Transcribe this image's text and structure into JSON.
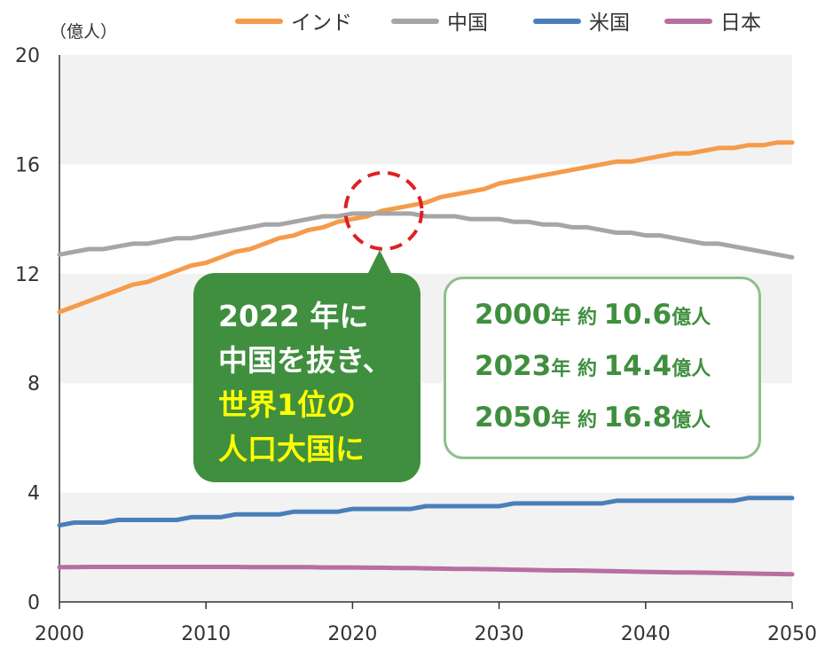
{
  "chart_data": {
    "type": "line",
    "unit_label": "（億人）",
    "x": [
      2000,
      2001,
      2002,
      2003,
      2004,
      2005,
      2006,
      2007,
      2008,
      2009,
      2010,
      2011,
      2012,
      2013,
      2014,
      2015,
      2016,
      2017,
      2018,
      2019,
      2020,
      2021,
      2022,
      2023,
      2024,
      2025,
      2026,
      2027,
      2028,
      2029,
      2030,
      2031,
      2032,
      2033,
      2034,
      2035,
      2036,
      2037,
      2038,
      2039,
      2040,
      2041,
      2042,
      2043,
      2044,
      2045,
      2046,
      2047,
      2048,
      2049,
      2050
    ],
    "xlim": [
      2000,
      2050
    ],
    "ylim": [
      0,
      20
    ],
    "x_ticks": [
      2000,
      2010,
      2020,
      2030,
      2040,
      2050
    ],
    "y_ticks": [
      0,
      4,
      8,
      12,
      16,
      20
    ],
    "grid": "alternating horizontal bands",
    "legend_position": "top",
    "series": [
      {
        "name": "インド",
        "color": "#f59b4a",
        "values": [
          10.6,
          10.8,
          11.0,
          11.2,
          11.4,
          11.6,
          11.7,
          11.9,
          12.1,
          12.3,
          12.4,
          12.6,
          12.8,
          12.9,
          13.1,
          13.3,
          13.4,
          13.6,
          13.7,
          13.9,
          14.0,
          14.1,
          14.3,
          14.4,
          14.5,
          14.6,
          14.8,
          14.9,
          15.0,
          15.1,
          15.3,
          15.4,
          15.5,
          15.6,
          15.7,
          15.8,
          15.9,
          16.0,
          16.1,
          16.1,
          16.2,
          16.3,
          16.4,
          16.4,
          16.5,
          16.6,
          16.6,
          16.7,
          16.7,
          16.8,
          16.8
        ]
      },
      {
        "name": "中国",
        "color": "#a6a6a6",
        "values": [
          12.7,
          12.8,
          12.9,
          12.9,
          13.0,
          13.1,
          13.1,
          13.2,
          13.3,
          13.3,
          13.4,
          13.5,
          13.6,
          13.7,
          13.8,
          13.8,
          13.9,
          14.0,
          14.1,
          14.1,
          14.2,
          14.2,
          14.2,
          14.2,
          14.2,
          14.1,
          14.1,
          14.1,
          14.0,
          14.0,
          14.0,
          13.9,
          13.9,
          13.8,
          13.8,
          13.7,
          13.7,
          13.6,
          13.5,
          13.5,
          13.4,
          13.4,
          13.3,
          13.2,
          13.1,
          13.1,
          13.0,
          12.9,
          12.8,
          12.7,
          12.6
        ]
      },
      {
        "name": "米国",
        "color": "#4a7ebb",
        "values": [
          2.8,
          2.9,
          2.9,
          2.9,
          3.0,
          3.0,
          3.0,
          3.0,
          3.0,
          3.1,
          3.1,
          3.1,
          3.2,
          3.2,
          3.2,
          3.2,
          3.3,
          3.3,
          3.3,
          3.3,
          3.4,
          3.4,
          3.4,
          3.4,
          3.4,
          3.5,
          3.5,
          3.5,
          3.5,
          3.5,
          3.5,
          3.6,
          3.6,
          3.6,
          3.6,
          3.6,
          3.6,
          3.6,
          3.7,
          3.7,
          3.7,
          3.7,
          3.7,
          3.7,
          3.7,
          3.7,
          3.7,
          3.8,
          3.8,
          3.8,
          3.8
        ]
      },
      {
        "name": "日本",
        "color": "#b86ea0",
        "values": [
          1.27,
          1.27,
          1.28,
          1.28,
          1.28,
          1.28,
          1.28,
          1.28,
          1.28,
          1.28,
          1.28,
          1.28,
          1.28,
          1.27,
          1.27,
          1.27,
          1.27,
          1.27,
          1.26,
          1.26,
          1.26,
          1.25,
          1.25,
          1.24,
          1.24,
          1.23,
          1.22,
          1.21,
          1.21,
          1.2,
          1.19,
          1.18,
          1.17,
          1.16,
          1.15,
          1.15,
          1.14,
          1.13,
          1.12,
          1.11,
          1.1,
          1.09,
          1.08,
          1.08,
          1.07,
          1.06,
          1.05,
          1.04,
          1.03,
          1.02,
          1.01
        ]
      }
    ],
    "crossover_year": 2022
  },
  "callout": {
    "line1": "2022 年に",
    "line2": "中国を抜き、",
    "line3": "世界1位の",
    "line4": "人口大国に"
  },
  "info_box": {
    "rows": [
      {
        "year": "2000",
        "mid": "年 約 ",
        "value": "10.6",
        "unit": "億人"
      },
      {
        "year": "2023",
        "mid": "年 約 ",
        "value": "14.4",
        "unit": "億人"
      },
      {
        "year": "2050",
        "mid": "年 約 ",
        "value": "16.8",
        "unit": "億人"
      }
    ]
  }
}
